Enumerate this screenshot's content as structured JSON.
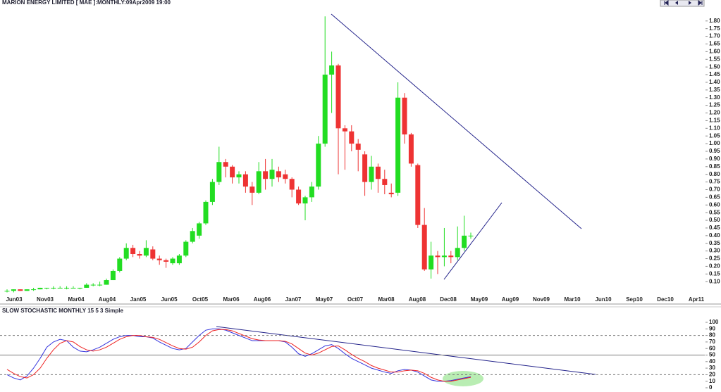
{
  "chart_data": [
    {
      "type": "candlestick",
      "title": "MARION ENERGY LIMITED [ MAE ]:MONTHLY:09Apr2009 19:00",
      "x_axis_labels": [
        "Jun03",
        "Nov03",
        "Mar04",
        "Aug04",
        "Jan05",
        "Jun05",
        "Oct05",
        "Mar06",
        "Aug06",
        "Jan07",
        "May07",
        "Oct07",
        "Mar08",
        "Aug08",
        "Dec08",
        "May09",
        "Aug09",
        "Nov09",
        "Mar10",
        "Jun10",
        "Sep10",
        "Dec10",
        "Apr11"
      ],
      "up_color": "#22dd22",
      "down_color": "#ee3333",
      "ylim": [
        0,
        1.9
      ],
      "yticks": [
        {
          "value": 0.1,
          "label": "0.10"
        },
        {
          "value": 0.15,
          "label": "0.15"
        },
        {
          "value": 0.2,
          "label": "0.20"
        },
        {
          "value": 0.25,
          "label": "0.25"
        },
        {
          "value": 0.3,
          "label": "0.30"
        },
        {
          "value": 0.35,
          "label": "0.35"
        },
        {
          "value": 0.4,
          "label": "0.40"
        },
        {
          "value": 0.45,
          "label": "0.45"
        },
        {
          "value": 0.5,
          "label": "0.50"
        },
        {
          "value": 0.55,
          "label": "0.55"
        },
        {
          "value": 0.6,
          "label": "0.60"
        },
        {
          "value": 0.65,
          "label": "0.65"
        },
        {
          "value": 0.7,
          "label": "0.70"
        },
        {
          "value": 0.75,
          "label": "0.75"
        },
        {
          "value": 0.8,
          "label": "0.80"
        },
        {
          "value": 0.85,
          "label": "0.85"
        },
        {
          "value": 0.9,
          "label": "0.90"
        },
        {
          "value": 0.95,
          "label": "0.95"
        },
        {
          "value": 1.0,
          "label": "1.00"
        },
        {
          "value": 1.05,
          "label": "1.05"
        },
        {
          "value": 1.1,
          "label": "1.10"
        },
        {
          "value": 1.15,
          "label": "1.15"
        },
        {
          "value": 1.2,
          "label": "1.20"
        },
        {
          "value": 1.25,
          "label": "1.25"
        },
        {
          "value": 1.3,
          "label": "1.30"
        },
        {
          "value": 1.35,
          "label": "1.35"
        },
        {
          "value": 1.4,
          "label": "1.40"
        },
        {
          "value": 1.45,
          "label": "1.45"
        },
        {
          "value": 1.5,
          "label": "1.50"
        },
        {
          "value": 1.55,
          "label": "1.55"
        },
        {
          "value": 1.6,
          "label": "1.60"
        },
        {
          "value": 1.65,
          "label": "1.65"
        },
        {
          "value": 1.7,
          "label": "1.70"
        },
        {
          "value": 1.75,
          "label": "1.75"
        },
        {
          "value": 1.8,
          "label": "1.80"
        }
      ],
      "ohlc": [
        [
          0.04,
          0.05,
          0.03,
          0.04
        ],
        [
          0.04,
          0.05,
          0.03,
          0.05
        ],
        [
          0.05,
          0.05,
          0.04,
          0.04
        ],
        [
          0.04,
          0.05,
          0.04,
          0.05
        ],
        [
          0.05,
          0.06,
          0.04,
          0.05
        ],
        [
          0.05,
          0.06,
          0.05,
          0.06
        ],
        [
          0.06,
          0.06,
          0.05,
          0.06
        ],
        [
          0.06,
          0.07,
          0.05,
          0.06
        ],
        [
          0.06,
          0.07,
          0.06,
          0.06
        ],
        [
          0.06,
          0.07,
          0.05,
          0.06
        ],
        [
          0.06,
          0.07,
          0.06,
          0.06
        ],
        [
          0.06,
          0.06,
          0.05,
          0.06
        ],
        [
          0.06,
          0.09,
          0.06,
          0.08
        ],
        [
          0.08,
          0.09,
          0.07,
          0.08
        ],
        [
          0.08,
          0.1,
          0.07,
          0.08
        ],
        [
          0.08,
          0.12,
          0.08,
          0.11
        ],
        [
          0.11,
          0.18,
          0.11,
          0.17
        ],
        [
          0.17,
          0.26,
          0.16,
          0.25
        ],
        [
          0.25,
          0.35,
          0.24,
          0.32
        ],
        [
          0.32,
          0.34,
          0.26,
          0.28
        ],
        [
          0.28,
          0.3,
          0.25,
          0.27
        ],
        [
          0.27,
          0.37,
          0.26,
          0.32
        ],
        [
          0.31,
          0.33,
          0.24,
          0.25
        ],
        [
          0.25,
          0.27,
          0.21,
          0.24
        ],
        [
          0.24,
          0.25,
          0.19,
          0.23
        ],
        [
          0.22,
          0.26,
          0.21,
          0.25
        ],
        [
          0.22,
          0.28,
          0.21,
          0.27
        ],
        [
          0.27,
          0.37,
          0.26,
          0.36
        ],
        [
          0.36,
          0.45,
          0.35,
          0.43
        ],
        [
          0.4,
          0.49,
          0.38,
          0.48
        ],
        [
          0.48,
          0.63,
          0.47,
          0.62
        ],
        [
          0.62,
          0.77,
          0.6,
          0.75
        ],
        [
          0.75,
          0.98,
          0.73,
          0.88
        ],
        [
          0.88,
          0.9,
          0.78,
          0.85
        ],
        [
          0.85,
          0.86,
          0.74,
          0.78
        ],
        [
          0.78,
          0.82,
          0.74,
          0.8
        ],
        [
          0.8,
          0.82,
          0.68,
          0.72
        ],
        [
          0.72,
          0.75,
          0.6,
          0.68
        ],
        [
          0.68,
          0.88,
          0.67,
          0.82
        ],
        [
          0.82,
          0.9,
          0.7,
          0.77
        ],
        [
          0.77,
          0.9,
          0.72,
          0.83
        ],
        [
          0.82,
          0.85,
          0.75,
          0.78
        ],
        [
          0.8,
          0.83,
          0.74,
          0.77
        ],
        [
          0.77,
          0.78,
          0.65,
          0.7
        ],
        [
          0.7,
          0.72,
          0.6,
          0.61
        ],
        [
          0.61,
          0.66,
          0.5,
          0.65
        ],
        [
          0.65,
          0.75,
          0.62,
          0.72
        ],
        [
          0.72,
          1.05,
          0.7,
          1.0
        ],
        [
          1.0,
          1.83,
          0.98,
          1.45
        ],
        [
          1.45,
          1.6,
          1.2,
          1.51
        ],
        [
          1.51,
          1.52,
          0.8,
          1.1
        ],
        [
          1.1,
          1.12,
          0.83,
          1.08
        ],
        [
          1.08,
          1.12,
          0.95,
          1.0
        ],
        [
          1.0,
          1.03,
          0.82,
          0.96
        ],
        [
          0.93,
          0.95,
          0.66,
          0.75
        ],
        [
          0.75,
          0.92,
          0.7,
          0.85
        ],
        [
          0.85,
          0.87,
          0.68,
          0.77
        ],
        [
          0.77,
          0.83,
          0.67,
          0.73
        ],
        [
          0.68,
          0.74,
          0.65,
          0.67
        ],
        [
          0.68,
          1.4,
          0.66,
          1.3
        ],
        [
          1.3,
          1.33,
          1.0,
          1.06
        ],
        [
          1.06,
          1.07,
          0.85,
          0.87
        ],
        [
          0.86,
          0.87,
          0.45,
          0.47
        ],
        [
          0.47,
          0.58,
          0.17,
          0.18
        ],
        [
          0.18,
          0.36,
          0.12,
          0.27
        ],
        [
          0.27,
          0.3,
          0.15,
          0.26
        ],
        [
          0.26,
          0.45,
          0.2,
          0.27
        ],
        [
          0.27,
          0.3,
          0.22,
          0.26
        ],
        [
          0.26,
          0.46,
          0.24,
          0.32
        ],
        [
          0.32,
          0.53,
          0.3,
          0.4
        ],
        [
          0.4,
          0.42,
          0.38,
          0.4
        ]
      ]
    },
    {
      "type": "line",
      "title": "SLOW STOCHASTIC MONTHLY 15 5 3 Simple",
      "ylim": [
        0,
        100
      ],
      "yticks": [
        0,
        10,
        20,
        30,
        40,
        50,
        60,
        70,
        80,
        90,
        100
      ],
      "reference_lines": [
        20,
        50,
        80
      ],
      "series": [
        {
          "color": "#3333dd",
          "values": [
            20,
            15,
            12,
            18,
            30,
            45,
            62,
            70,
            74,
            72,
            62,
            56,
            55,
            58,
            62,
            68,
            74,
            78,
            80,
            80,
            78,
            78,
            76,
            70,
            65,
            60,
            58,
            60,
            70,
            80,
            88,
            90,
            90,
            88,
            84,
            80,
            76,
            72,
            72,
            72,
            72,
            72,
            70,
            62,
            52,
            48,
            52,
            58,
            64,
            66,
            60,
            52,
            45,
            40,
            35,
            30,
            27,
            24,
            22,
            26,
            28,
            27,
            24,
            18,
            12,
            10,
            10,
            11,
            13,
            15,
            17
          ]
        },
        {
          "color": "#ee2222",
          "values": [
            28,
            22,
            17,
            15,
            20,
            30,
            45,
            58,
            68,
            72,
            70,
            63,
            58,
            56,
            58,
            62,
            68,
            74,
            78,
            80,
            80,
            78,
            77,
            74,
            69,
            64,
            60,
            59,
            62,
            70,
            80,
            87,
            89,
            89,
            87,
            83,
            79,
            75,
            73,
            72,
            72,
            72,
            71,
            67,
            60,
            53,
            50,
            53,
            58,
            63,
            64,
            58,
            51,
            45,
            40,
            34,
            30,
            27,
            24,
            24,
            26,
            27,
            26,
            22,
            16,
            12,
            10,
            10,
            12,
            14,
            16
          ]
        }
      ]
    }
  ]
}
